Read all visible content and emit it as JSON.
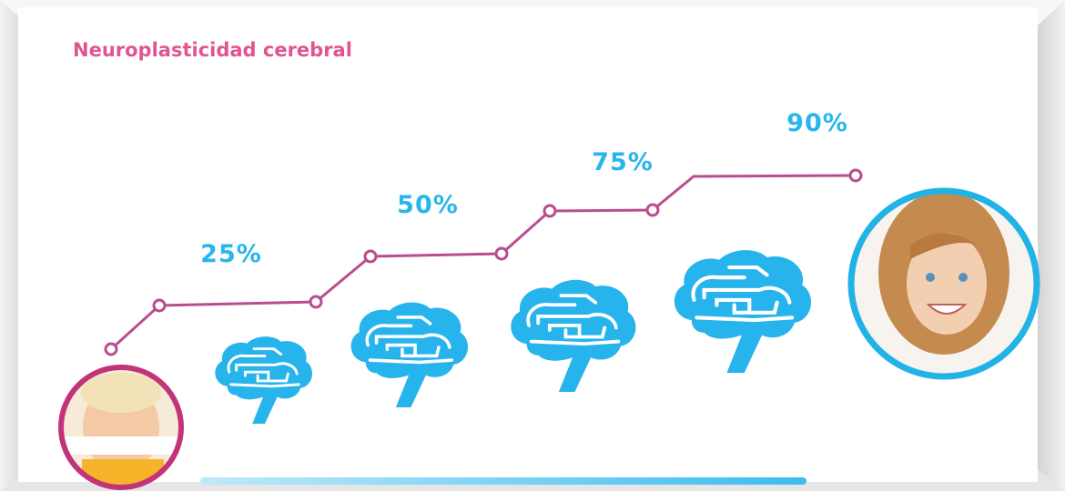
{
  "title": "Neuroplasticidad cerebral",
  "stages": [
    {
      "label": "25%"
    },
    {
      "label": "50%"
    },
    {
      "label": "75%"
    },
    {
      "label": "90%"
    }
  ]
}
